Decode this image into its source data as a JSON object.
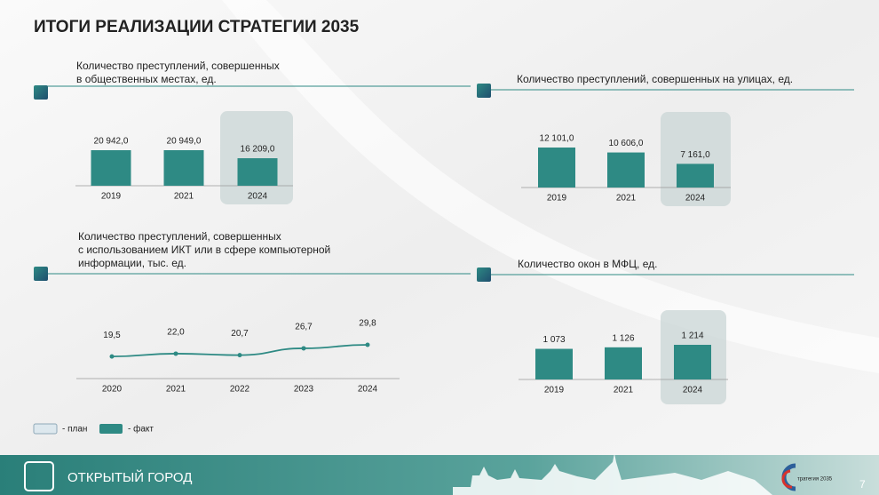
{
  "header": {
    "title": "ИТОГИ РЕАЛИЗАЦИИ СТРАТЕГИИ 2035"
  },
  "chart_data": [
    {
      "type": "bar",
      "title": [
        "Количество преступлений, совершенных",
        "в общественных местах, ед."
      ],
      "categories": [
        "2019",
        "2021",
        "2024"
      ],
      "values": [
        20942.0,
        20949.0,
        16209.0
      ],
      "value_labels": [
        "20 942,0",
        "20 949,0",
        "16 209,0"
      ],
      "color": "#2e8a84"
    },
    {
      "type": "bar",
      "title": [
        "Количество преступлений, совершенных на улицах, ед."
      ],
      "categories": [
        "2019",
        "2021",
        "2024"
      ],
      "values": [
        12101.0,
        10606.0,
        7161.0
      ],
      "value_labels": [
        "12 101,0",
        "10 606,0",
        "7 161,0"
      ],
      "color": "#2e8a84"
    },
    {
      "type": "line",
      "title": [
        "Количество преступлений, совершенных",
        "с использованием ИКТ или в сфере компьютерной",
        "информации, тыс. ед."
      ],
      "categories": [
        "2020",
        "2021",
        "2022",
        "2023",
        "2024"
      ],
      "values": [
        19.5,
        22.0,
        20.7,
        26.7,
        29.8
      ],
      "value_labels": [
        "19,5",
        "22,0",
        "20,7",
        "26,7",
        "29,8"
      ],
      "color": "#2e8a84"
    },
    {
      "type": "bar",
      "title": [
        "Количество окон в МФЦ, ед."
      ],
      "categories": [
        "2019",
        "2021",
        "2024"
      ],
      "values": [
        1073,
        1126,
        1214
      ],
      "value_labels": [
        "1 073",
        "1 126",
        "1 214"
      ],
      "color": "#2e8a84"
    }
  ],
  "legend": [
    {
      "name": "- план",
      "color": "#dde8ee"
    },
    {
      "name": "- факт",
      "color": "#2e8a84"
    }
  ],
  "footer": {
    "label": "ОТКРЫТЫЙ ГОРОД",
    "logo": "тратегия 2035",
    "page": "7"
  }
}
